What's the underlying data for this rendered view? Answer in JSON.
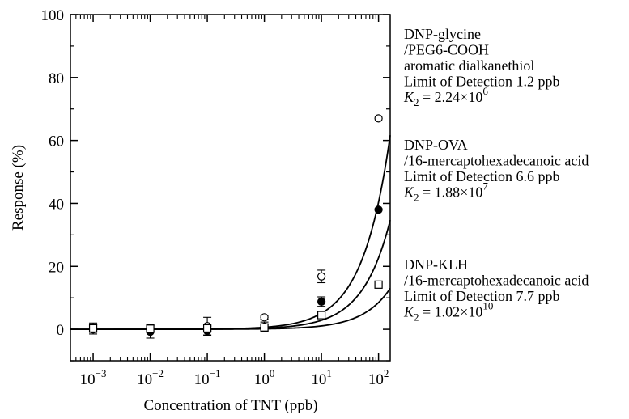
{
  "chart_data": {
    "type": "scatter",
    "xlabel": "Concentration of TNT (ppb)",
    "ylabel": "Response (%)",
    "x_scale": "log",
    "xlim": [
      0.0004,
      160
    ],
    "ylim": [
      -10,
      100
    ],
    "x_ticks": [
      0.001,
      0.01,
      0.1,
      1,
      10,
      100
    ],
    "x_tick_bases": [
      "10",
      "10",
      "10",
      "10",
      "10",
      "10"
    ],
    "x_tick_exps": [
      "−3",
      "−2",
      "−1",
      "0",
      "1",
      "2"
    ],
    "y_ticks": [
      0,
      20,
      40,
      60,
      80,
      100
    ],
    "y_tick_labels": [
      "0",
      "20",
      "40",
      "60",
      "80",
      "100"
    ],
    "grid": false,
    "series": [
      {
        "marker": "open-circle",
        "x": [
          0.001,
          0.01,
          0.1,
          1,
          10,
          100
        ],
        "y": [
          0.5,
          0.3,
          1.0,
          3.8,
          16.8,
          67.0
        ],
        "err": [
          1.5,
          1.2,
          2.8,
          0.6,
          2.0,
          0.0
        ],
        "fit_k": 0.64,
        "labels": [
          {
            "text": "DNP-glycine"
          },
          {
            "text": "/PEG6-COOH"
          },
          {
            "text": "aromatic dialkanethiol"
          },
          {
            "text": "Limit of Detection  1.2 ppb"
          },
          {
            "k_sym": "K",
            "k_sub": "2",
            "k_mid": " = 2.24×10",
            "k_exp": "6"
          }
        ]
      },
      {
        "marker": "filled-circle",
        "x": [
          0.001,
          0.01,
          0.1,
          1,
          10,
          100
        ],
        "y": [
          0.0,
          -0.8,
          -0.5,
          0.8,
          8.8,
          38.0
        ],
        "err": [
          1.5,
          2.0,
          1.5,
          1.5,
          1.5,
          0.0
        ],
        "fit_k": 0.36,
        "labels": [
          {
            "text": "DNP-OVA"
          },
          {
            "text": "/16-mercaptohexadecanoic acid"
          },
          {
            "text": "Limit of Detection  6.6 ppb"
          },
          {
            "k_sym": "K",
            "k_sub": "2",
            "k_mid": " = 1.88×10",
            "k_exp": "7"
          }
        ]
      },
      {
        "marker": "open-square",
        "x": [
          0.001,
          0.01,
          0.1,
          1,
          10,
          100
        ],
        "y": [
          0.3,
          0.2,
          0.3,
          0.6,
          4.5,
          14.2
        ],
        "err": [
          1.2,
          1.0,
          1.0,
          1.0,
          0.8,
          0.0
        ],
        "fit_k": 0.135,
        "labels": [
          {
            "text": "DNP-KLH"
          },
          {
            "text": "/16-mercaptohexadecanoic acid"
          },
          {
            "text": "Limit of Detection  7.7 ppb"
          },
          {
            "k_sym": "K",
            "k_sub": "2",
            "k_mid": " = 1.02×10",
            "k_exp": "10"
          }
        ]
      }
    ]
  }
}
